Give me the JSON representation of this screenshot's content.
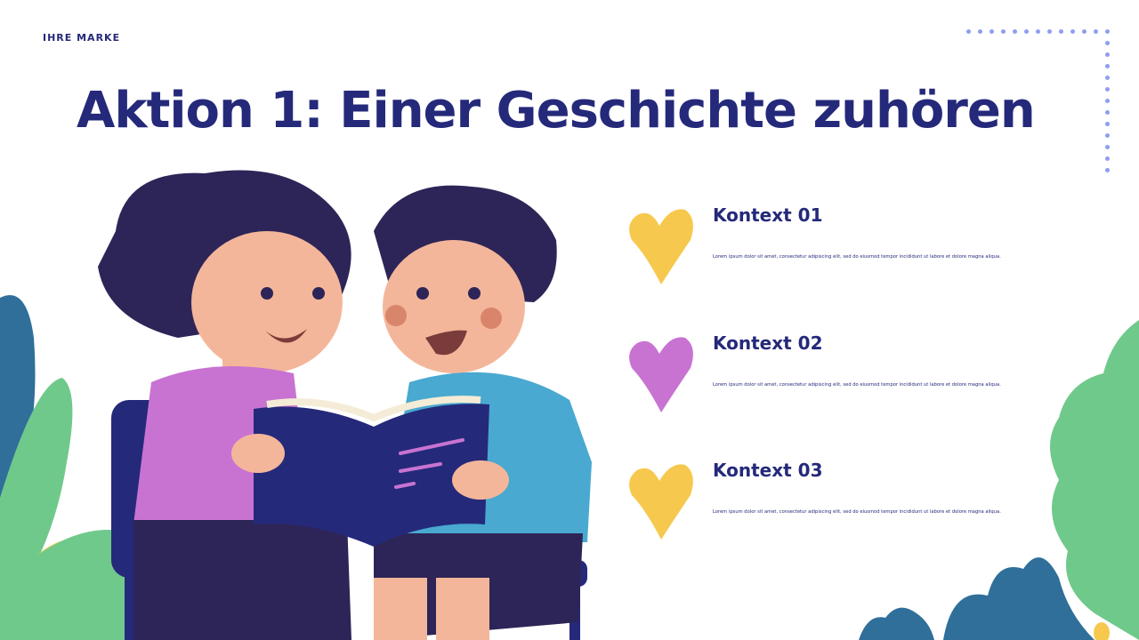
{
  "brand": "IHRE MARKE",
  "title": "Aktion 1: Einer Geschichte zuhören",
  "colors": {
    "primary": "#25297a",
    "dots": "#8f9ef0",
    "heart_yellow": "#f6c94e",
    "heart_purple": "#c873d2"
  },
  "items": [
    {
      "title": "Kontext 01",
      "text": "Lorem ipsum dolor sit amet, consectetur adipiscing elit, sed do eiusmod tempor incididunt ut labore et dolore magna aliqua.",
      "heart_color": "#f6c94e"
    },
    {
      "title": "Kontext 02",
      "text": "Lorem ipsum dolor sit amet, consectetur adipiscing elit, sed do eiusmod tempor incididunt ut labore et dolore magna aliqua.",
      "heart_color": "#c873d2"
    },
    {
      "title": "Kontext 03",
      "text": "Lorem ipsum dolor sit amet, consectetur adipiscing elit, sed do eiusmod tempor incididunt ut labore et dolore magna aliqua.",
      "heart_color": "#f6c94e"
    }
  ]
}
